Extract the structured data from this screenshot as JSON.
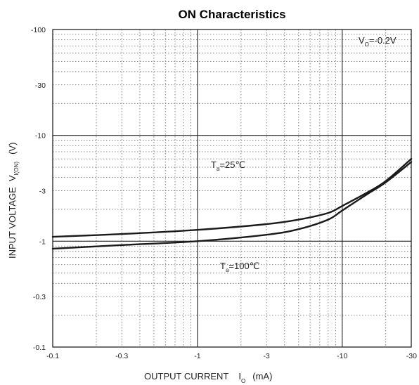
{
  "chart_data": {
    "type": "line",
    "title": "ON Characteristics",
    "xlabel": {
      "main": "OUTPUT CURRENT",
      "symbol": "I",
      "sub": "O",
      "unit": "(mA)"
    },
    "ylabel": {
      "main": "INPUT VOLTAGE",
      "symbol": "V",
      "sub": "I(ON)",
      "unit": "(V)"
    },
    "x_scale": "log",
    "y_scale": "log",
    "xlim": [
      -0.1,
      -30
    ],
    "ylim": [
      -0.1,
      -100
    ],
    "x_ticks": [
      "-0.1",
      "-0.3",
      "-1",
      "-3",
      "-10",
      "-30"
    ],
    "x_tick_values": [
      -0.1,
      -0.3,
      -1,
      -3,
      -10,
      -30
    ],
    "y_ticks": [
      "-100",
      "-30",
      "-10",
      "-3",
      "-1",
      "-0.3",
      "-0.1"
    ],
    "y_tick_values": [
      -100,
      -30,
      -10,
      -3,
      -1,
      -0.3,
      -0.1
    ],
    "grid": true,
    "condition": {
      "symbol": "V",
      "sub": "O",
      "text": "=-0.2V"
    },
    "series": [
      {
        "label": {
          "symbol": "T",
          "sub": "a",
          "text": "=25℃"
        },
        "x": [
          -0.1,
          -0.3,
          -1,
          -3,
          -5,
          -8,
          -10,
          -15,
          -20,
          -30
        ],
        "y": [
          -0.85,
          -0.92,
          -1.0,
          -1.15,
          -1.3,
          -1.6,
          -1.95,
          -2.8,
          -3.6,
          -5.6
        ]
      },
      {
        "label": {
          "symbol": "T",
          "sub": "a",
          "text": "=100℃"
        },
        "x": [
          -0.1,
          -0.3,
          -1,
          -3,
          -5,
          -8,
          -10,
          -15,
          -20,
          -30
        ],
        "y": [
          -1.1,
          -1.17,
          -1.28,
          -1.45,
          -1.6,
          -1.85,
          -2.15,
          -2.9,
          -3.7,
          -6.0
        ]
      }
    ]
  }
}
